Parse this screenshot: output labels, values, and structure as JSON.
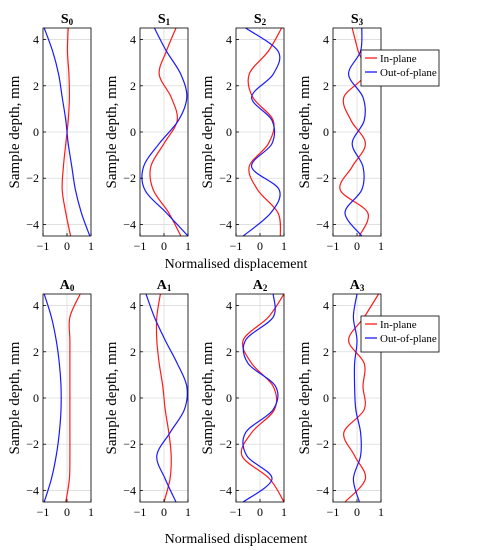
{
  "chart_data": {
    "type": "line",
    "xlabel": "Normalised displacement",
    "ylabel": "Sample depth, mm",
    "xlim": [
      -1,
      1
    ],
    "ylim": [
      -4.5,
      4.5
    ],
    "x_ticks": [
      "−1",
      "0",
      "1"
    ],
    "y_ticks": [
      "4",
      "2",
      "0",
      "−2",
      "−4"
    ],
    "grid": true,
    "legend": {
      "entries": [
        "In-plane",
        "Out-of-plane"
      ],
      "placement": "top-right, outside last panel of each row"
    },
    "colors": {
      "in_plane": "#ff1a1a",
      "out_of_plane": "#1a1aff"
    },
    "depth": [
      -4.5,
      -3.5,
      -2.5,
      -1.5,
      -0.5,
      0.5,
      1.5,
      2.5,
      3.5,
      4.5
    ],
    "panels": [
      {
        "label": "S",
        "sub": "0",
        "series": [
          {
            "name": "In-plane",
            "x": [
              0.15,
              -0.05,
              -0.2,
              -0.15,
              -0.05,
              0.05,
              0.1,
              0.08,
              0.02,
              0.05
            ]
          },
          {
            "name": "Out-of-plane",
            "x": [
              0.95,
              0.6,
              0.35,
              0.2,
              0.05,
              -0.05,
              -0.2,
              -0.35,
              -0.6,
              -0.95
            ]
          }
        ]
      },
      {
        "label": "S",
        "sub": "1",
        "series": [
          {
            "name": "In-plane",
            "x": [
              0.7,
              0.2,
              -0.45,
              -0.55,
              0.0,
              0.55,
              0.3,
              -0.2,
              0.1,
              0.5
            ]
          },
          {
            "name": "Out-of-plane",
            "x": [
              1.0,
              0.1,
              -0.8,
              -0.85,
              -0.2,
              0.6,
              0.95,
              0.7,
              0.1,
              -0.4
            ]
          }
        ]
      },
      {
        "label": "S",
        "sub": "2",
        "series": [
          {
            "name": "In-plane",
            "x": [
              0.85,
              0.75,
              -0.1,
              -0.45,
              0.35,
              0.55,
              -0.3,
              -0.45,
              0.35,
              0.9
            ]
          },
          {
            "name": "Out-of-plane",
            "x": [
              -0.7,
              0.45,
              0.8,
              -0.35,
              0.5,
              0.5,
              -0.35,
              0.55,
              0.75,
              -0.6
            ]
          }
        ]
      },
      {
        "label": "S",
        "sub": "3",
        "series": [
          {
            "name": "In-plane",
            "x": [
              0.1,
              0.45,
              -0.7,
              -0.2,
              0.35,
              -0.25,
              -0.55,
              0.35,
              0.05,
              -0.2
            ]
          },
          {
            "name": "Out-of-plane",
            "x": [
              0.2,
              -0.5,
              0.2,
              0.25,
              -0.2,
              0.3,
              0.25,
              -0.35,
              0.15,
              0.2
            ]
          }
        ]
      },
      {
        "label": "A",
        "sub": "0",
        "series": [
          {
            "name": "In-plane",
            "x": [
              -0.05,
              0.1,
              0.12,
              0.12,
              0.12,
              0.12,
              0.12,
              0.12,
              0.12,
              0.55
            ]
          },
          {
            "name": "Out-of-plane",
            "x": [
              -0.95,
              -0.65,
              -0.45,
              -0.32,
              -0.25,
              -0.25,
              -0.32,
              -0.45,
              -0.65,
              -0.95
            ]
          }
        ]
      },
      {
        "label": "A",
        "sub": "1",
        "series": [
          {
            "name": "In-plane",
            "x": [
              0.0,
              0.25,
              0.3,
              0.2,
              0.05,
              -0.05,
              -0.2,
              -0.3,
              -0.3,
              -0.15
            ]
          },
          {
            "name": "Out-of-plane",
            "x": [
              0.5,
              0.05,
              -0.3,
              0.25,
              0.85,
              0.95,
              0.55,
              0.05,
              -0.4,
              -0.75
            ]
          }
        ]
      },
      {
        "label": "A",
        "sub": "2",
        "series": [
          {
            "name": "In-plane",
            "x": [
              1.0,
              0.4,
              -0.75,
              -0.35,
              0.6,
              0.55,
              -0.35,
              -0.7,
              0.35,
              1.0
            ]
          },
          {
            "name": "Out-of-plane",
            "x": [
              -0.7,
              0.5,
              -0.55,
              -0.6,
              0.55,
              0.65,
              -0.5,
              -0.6,
              0.55,
              0.55
            ]
          }
        ]
      },
      {
        "label": "A",
        "sub": "3",
        "series": [
          {
            "name": "In-plane",
            "x": [
              -0.5,
              0.35,
              -0.1,
              -0.55,
              0.3,
              0.25,
              0.3,
              -0.35,
              0.3,
              0.9
            ]
          },
          {
            "name": "Out-of-plane",
            "x": [
              0.1,
              -0.15,
              0.15,
              0.15,
              -0.05,
              -0.1,
              -0.1,
              0.0,
              -0.15,
              0.0
            ]
          }
        ]
      }
    ]
  }
}
